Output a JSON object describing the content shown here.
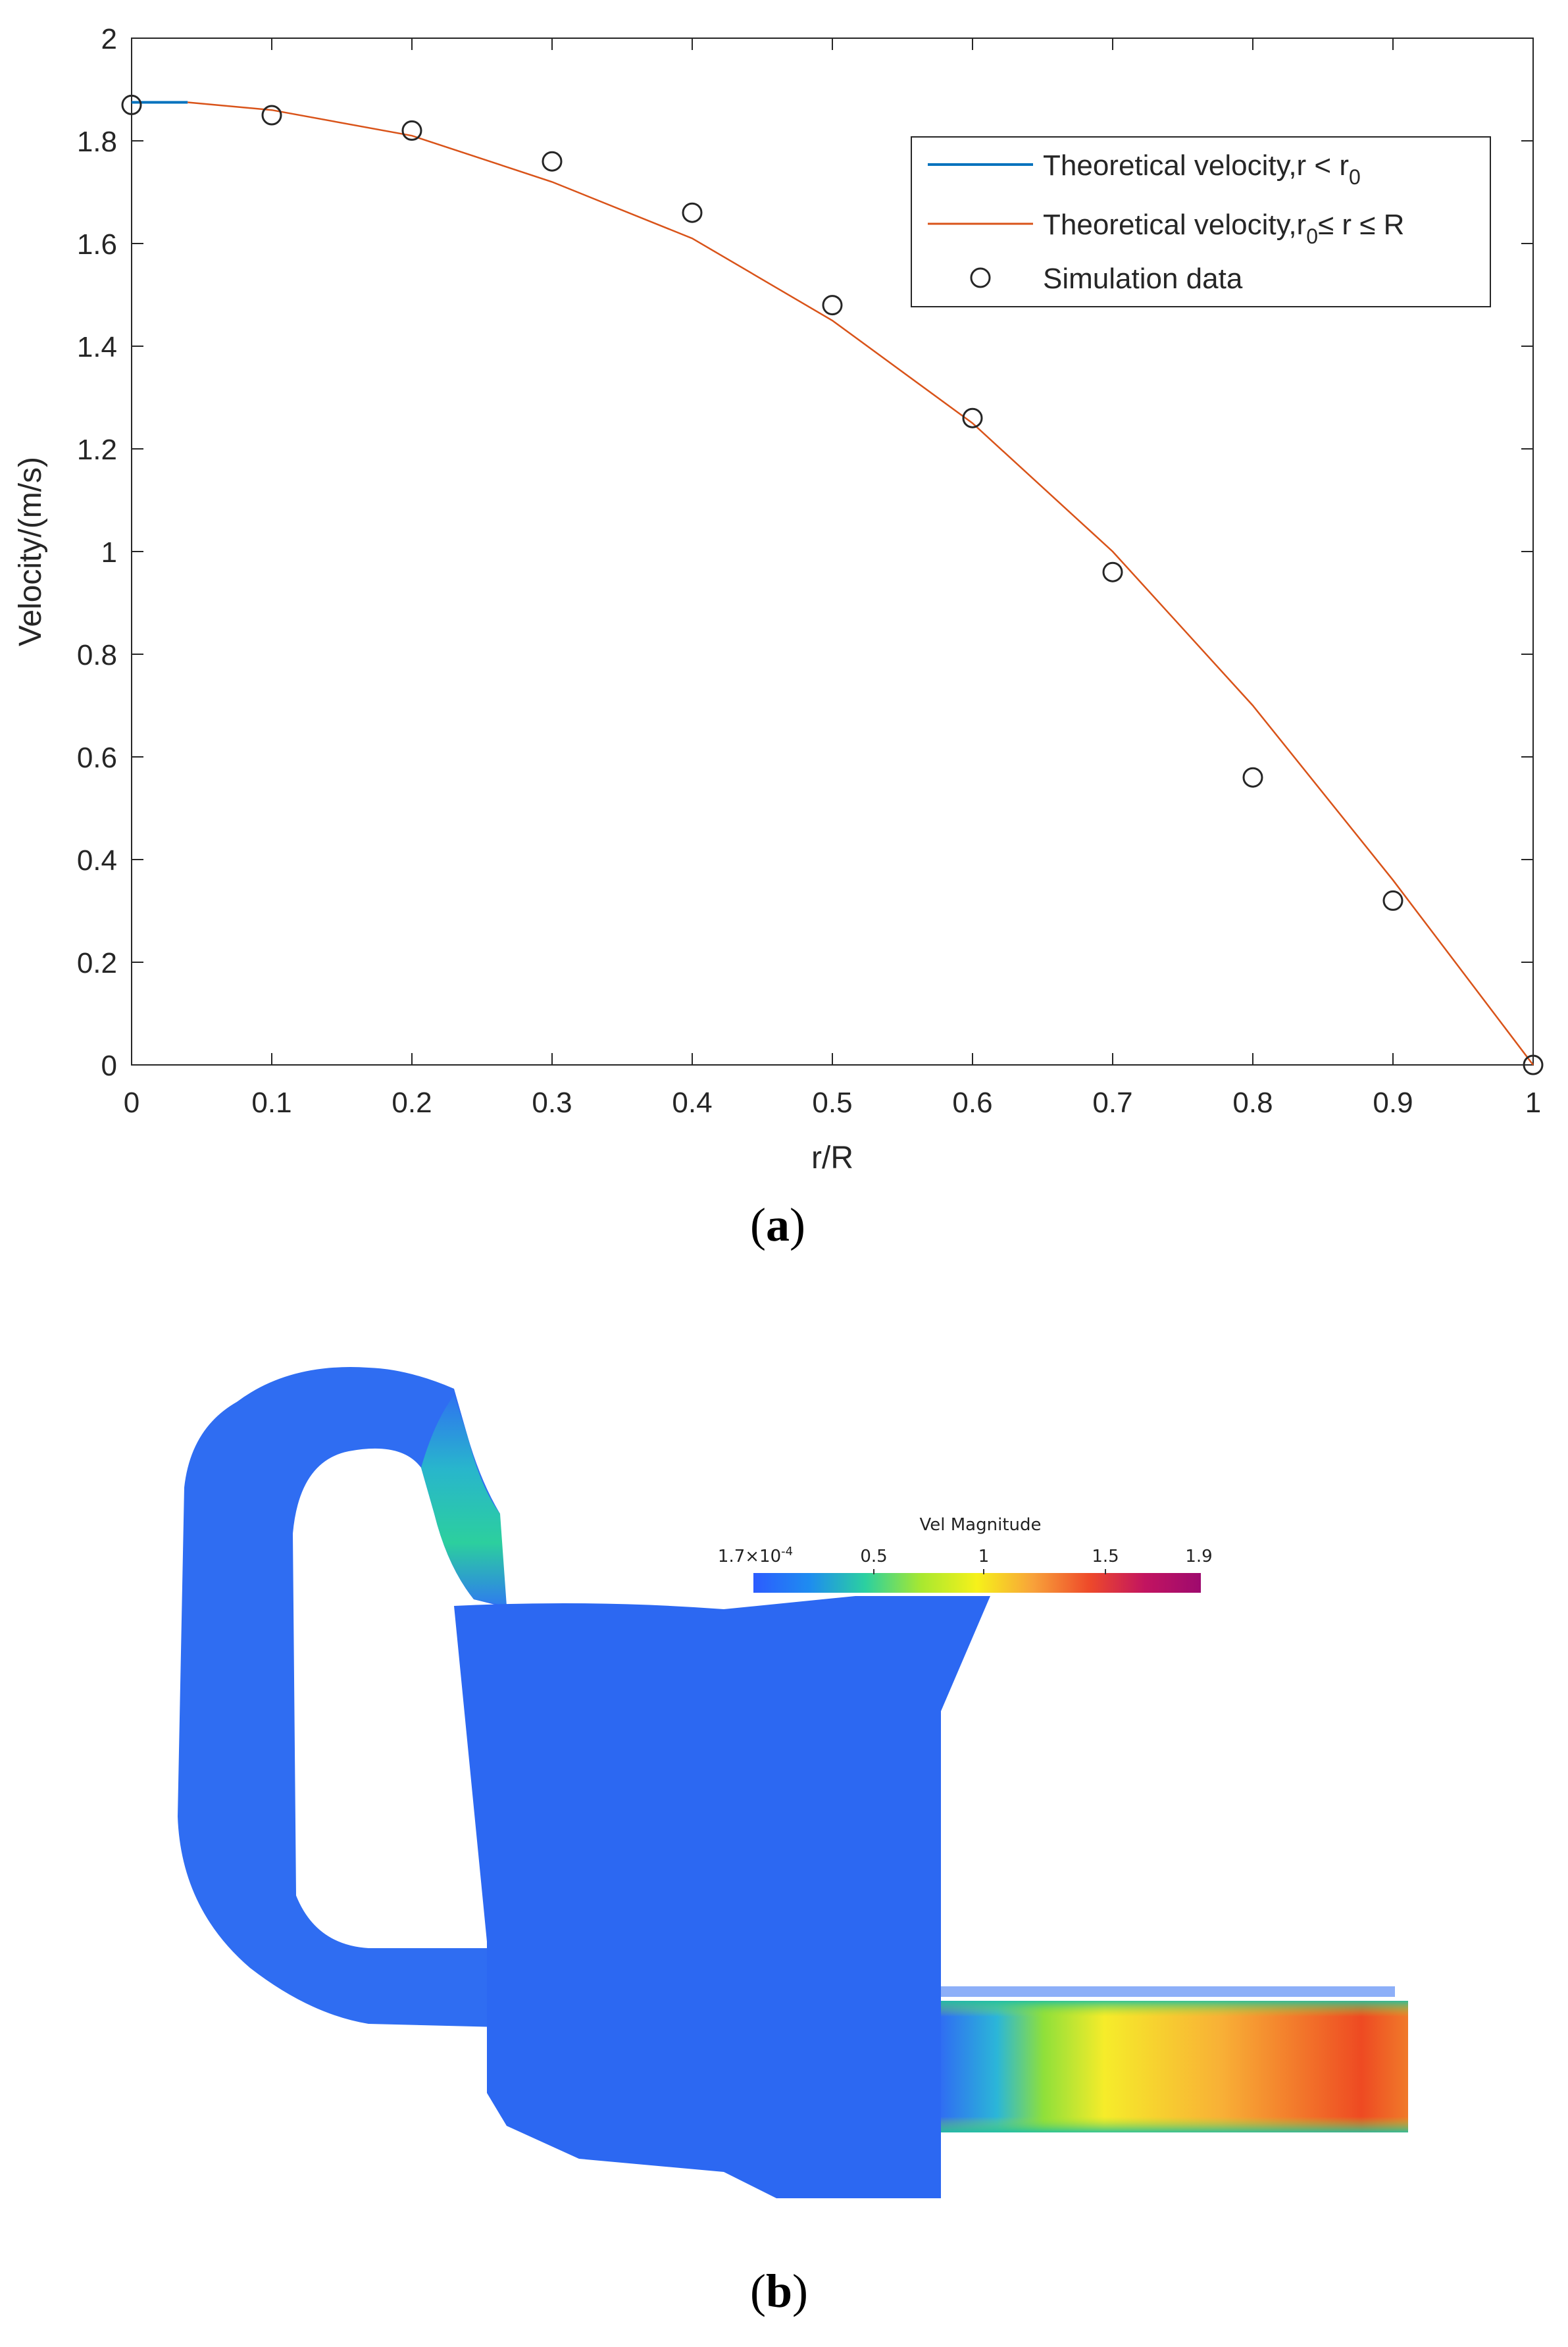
{
  "chart_data": {
    "type": "scatter",
    "xlabel": "r/R",
    "ylabel": "Velocity/(m/s)",
    "xlim": [
      0,
      1
    ],
    "ylim": [
      0,
      2
    ],
    "xticks": [
      0,
      0.1,
      0.2,
      0.3,
      0.4,
      0.5,
      0.6,
      0.7,
      0.8,
      0.9,
      1
    ],
    "yticks": [
      0,
      0.2,
      0.4,
      0.6,
      0.8,
      1,
      1.2,
      1.4,
      1.6,
      1.8,
      2
    ],
    "xtick_labels": [
      "0",
      "0.1",
      "0.2",
      "0.3",
      "0.4",
      "0.5",
      "0.6",
      "0.7",
      "0.8",
      "0.9",
      "1"
    ],
    "ytick_labels": [
      "0",
      "0.2",
      "0.4",
      "0.6",
      "0.8",
      "1",
      "1.2",
      "1.4",
      "1.6",
      "1.8",
      "2"
    ],
    "grid": false,
    "legend_position": "top-right",
    "series": [
      {
        "name": "Theoretical velocity,r < r0",
        "type": "line",
        "color": "#0072BD",
        "x": [
          0,
          0.01,
          0.02,
          0.03,
          0.04
        ],
        "y": [
          1.875,
          1.875,
          1.875,
          1.875,
          1.875
        ]
      },
      {
        "name": "Theoretical velocity,r0≤ r ≤ R",
        "type": "line",
        "color": "#D95319",
        "x": [
          0.04,
          0.1,
          0.2,
          0.3,
          0.4,
          0.5,
          0.6,
          0.7,
          0.8,
          0.9,
          1.0
        ],
        "y": [
          1.875,
          1.86,
          1.81,
          1.72,
          1.61,
          1.45,
          1.25,
          1.0,
          0.7,
          0.36,
          0.0
        ]
      },
      {
        "name": "Simulation data",
        "type": "scatter",
        "color": "#262626",
        "x": [
          0,
          0.1,
          0.2,
          0.3,
          0.4,
          0.5,
          0.6,
          0.7,
          0.8,
          0.9,
          1.0
        ],
        "y": [
          1.87,
          1.85,
          1.82,
          1.76,
          1.66,
          1.48,
          1.26,
          0.96,
          0.56,
          0.32,
          0.0
        ]
      }
    ],
    "legend": {
      "entry1_main": "Theoretical velocity,r < r",
      "entry1_sub": "0",
      "entry2_main": "Theoretical velocity,r",
      "entry2_sub": "0",
      "entry2_rest": "≤ r ≤ R",
      "entry3": "Simulation data"
    }
  },
  "labels": {
    "panel_a": "a",
    "panel_b": "b"
  },
  "colorbar": {
    "title": "Vel Magnitude",
    "tick_min_base": "1.7×10",
    "tick_min_exp": "-4",
    "ticks": [
      "0.5",
      "1",
      "1.5",
      "1.9"
    ],
    "stops": [
      "#2c5cff",
      "#1e8cf0",
      "#2bd0a0",
      "#a8e830",
      "#f6f11a",
      "#f8a23a",
      "#ee4a2a",
      "#c21460",
      "#9e0a6e"
    ]
  }
}
